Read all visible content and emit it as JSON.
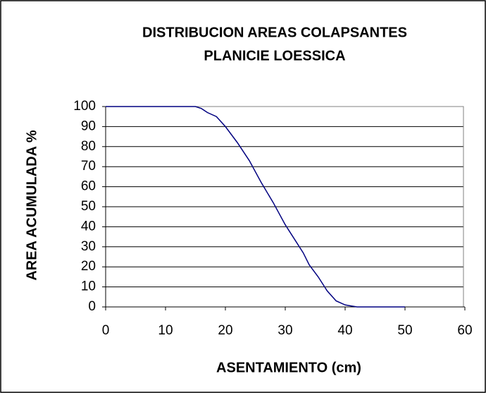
{
  "chart_data": {
    "type": "line",
    "title": [
      "DISTRIBUCION AREAS COLAPSANTES",
      "PLANICIE LOESSICA"
    ],
    "x_label": "ASENTAMIENTO (cm)",
    "y_label": "AREA ACUMULADA %",
    "x": [
      0,
      5,
      10,
      12,
      15,
      16,
      17,
      18.5,
      20,
      22,
      24,
      26,
      28,
      30,
      31.5,
      33,
      34,
      35.5,
      37,
      38.5,
      40,
      41,
      42,
      50
    ],
    "series": [
      {
        "name": "AREA ACUMULADA",
        "color": "#000080",
        "values": [
          100,
          100,
          100,
          100,
          100,
          99,
          97,
          95,
          90,
          82,
          73,
          62,
          52,
          41,
          34,
          27,
          21,
          15,
          8,
          3,
          1,
          0.5,
          0,
          0
        ]
      }
    ],
    "xlim": [
      0,
      60
    ],
    "xticks": [
      0,
      10,
      20,
      30,
      40,
      50,
      60
    ],
    "ylim": [
      0,
      100
    ],
    "yticks": [
      0,
      10,
      20,
      30,
      40,
      50,
      60,
      70,
      80,
      90,
      100
    ],
    "grid": true
  }
}
